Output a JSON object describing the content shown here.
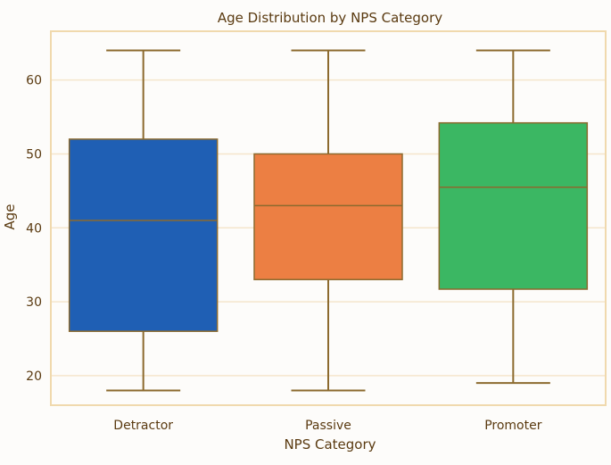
{
  "chart_data": {
    "type": "box",
    "title": "Age Distribution by NPS Category",
    "xlabel": "NPS Category",
    "ylabel": "Age",
    "categories": [
      "Detractor",
      "Passive",
      "Promoter"
    ],
    "boxes": [
      {
        "category": "Detractor",
        "min": 18,
        "q1": 26,
        "median": 41,
        "q3": 52,
        "max": 64,
        "color": "#1f5fb4"
      },
      {
        "category": "Passive",
        "min": 18,
        "q1": 33,
        "median": 43,
        "q3": 50,
        "max": 64,
        "color": "#ec7f43"
      },
      {
        "category": "Promoter",
        "min": 19,
        "q1": 31.7,
        "median": 45.5,
        "q3": 54.2,
        "max": 64,
        "color": "#3bb763"
      }
    ],
    "ylim": [
      16,
      66.6
    ],
    "yticks": [
      20,
      30,
      40,
      50,
      60
    ],
    "grid": "horizontal",
    "colors": {
      "frame": "#f0d9ad",
      "grid": "#f5e6cc",
      "whisker": "#8c6a2e",
      "text": "#5a3a10",
      "background": "#fdfcfa"
    }
  }
}
